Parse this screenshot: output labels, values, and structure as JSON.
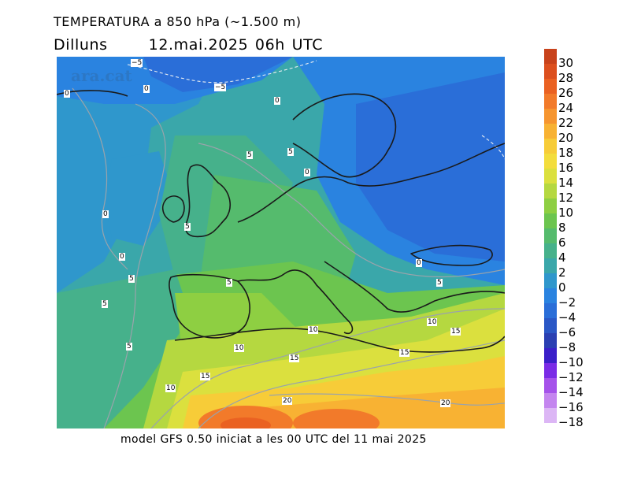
{
  "header": {
    "title": "TEMPERATURA a 850 hPa (~1.500 m)",
    "day": "Dilluns",
    "date": "12.mai.2025 06h UTC"
  },
  "footer": {
    "model_text": "model GFS 0.50 iniciat a les 00 UTC del 11 mai 2025"
  },
  "watermark": "ara.cat",
  "legend": {
    "labels": [
      "30",
      "28",
      "26",
      "24",
      "22",
      "20",
      "18",
      "16",
      "14",
      "12",
      "10",
      "8",
      "6",
      "4",
      "2",
      "0",
      "−2",
      "−4",
      "−6",
      "−8",
      "−10",
      "−12",
      "−14",
      "−16",
      "−18"
    ],
    "colors": [
      "#c8421b",
      "#dc4f1e",
      "#ea6122",
      "#f27a2a",
      "#f6952f",
      "#f8b233",
      "#f7cc38",
      "#f3dd3c",
      "#dbe03e",
      "#b5d840",
      "#8ecf42",
      "#6cc54f",
      "#55bb6d",
      "#46b18b",
      "#3aa7aa",
      "#2f97cc",
      "#2a83e0",
      "#2a6ed8",
      "#2a57c6",
      "#2a3fb2",
      "#3a1fc9",
      "#7a2be6",
      "#a552ea",
      "#c485ef",
      "#dcb6f5"
    ]
  },
  "contour_labels": [
    {
      "text": "−5"
    },
    {
      "text": "−5"
    },
    {
      "text": "0"
    },
    {
      "text": "0"
    },
    {
      "text": "0"
    },
    {
      "text": "5"
    },
    {
      "text": "5"
    },
    {
      "text": "0"
    },
    {
      "text": "0"
    },
    {
      "text": "5"
    },
    {
      "text": "0"
    },
    {
      "text": "5"
    },
    {
      "text": "5"
    },
    {
      "text": "5"
    },
    {
      "text": "0"
    },
    {
      "text": "5"
    },
    {
      "text": "5"
    },
    {
      "text": "10"
    },
    {
      "text": "10"
    },
    {
      "text": "10"
    },
    {
      "text": "15"
    },
    {
      "text": "15"
    },
    {
      "text": "15"
    },
    {
      "text": "10"
    },
    {
      "text": "15"
    },
    {
      "text": "20"
    },
    {
      "text": "20"
    }
  ]
}
